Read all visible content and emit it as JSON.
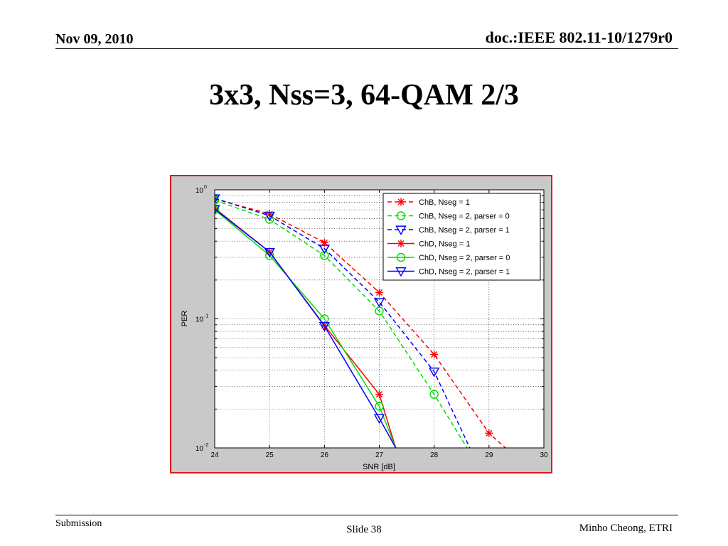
{
  "header": {
    "date": "Nov 09, 2010",
    "doc": "doc.:IEEE 802.11-10/1279r0"
  },
  "slide": {
    "title": "3x3, Nss=3, 64-QAM 2/3"
  },
  "footer": {
    "left": "Submission",
    "center": "Slide 38",
    "right": "Minho Cheong, ETRI"
  },
  "colors": {
    "red": "#ff0000",
    "green": "#00dd00",
    "blue": "#0000ff",
    "frame": "#e0191f"
  },
  "chart_data": {
    "type": "line",
    "xlabel": "SNR [dB]",
    "ylabel": "PER",
    "xlim": [
      24,
      30
    ],
    "ylim": [
      0.01,
      1
    ],
    "yscale": "log",
    "grid": true,
    "legend_position": "top-right",
    "x_ticks": [
      "24",
      "25",
      "26",
      "27",
      "28",
      "29",
      "30"
    ],
    "y_ticks": [
      {
        "base": "10",
        "exp": "0",
        "value": 1
      },
      {
        "base": "10",
        "exp": "-1",
        "value": 0.1
      },
      {
        "base": "10",
        "exp": "-2",
        "value": 0.01
      }
    ],
    "series": [
      {
        "name": "ChB, Nseg = 1",
        "color": "#ff0000",
        "dash": true,
        "marker": "star",
        "x": [
          24,
          25,
          26,
          27,
          28,
          29,
          29.3
        ],
        "y": [
          0.85,
          0.65,
          0.39,
          0.16,
          0.053,
          0.013,
          0.01
        ]
      },
      {
        "name": "ChB, Nseg = 2, parser = 0",
        "color": "#00dd00",
        "dash": true,
        "marker": "circle",
        "x": [
          24,
          25,
          26,
          27,
          28,
          28.6
        ],
        "y": [
          0.83,
          0.59,
          0.31,
          0.115,
          0.026,
          0.01
        ]
      },
      {
        "name": "ChB, Nseg = 2, parser = 1",
        "color": "#0000ff",
        "dash": true,
        "marker": "triangle",
        "x": [
          24,
          25,
          26,
          27,
          28,
          28.65
        ],
        "y": [
          0.86,
          0.63,
          0.35,
          0.135,
          0.039,
          0.01
        ]
      },
      {
        "name": "ChD, Nseg = 1",
        "color": "#ff0000",
        "dash": false,
        "marker": "star",
        "x": [
          24,
          25,
          26,
          27,
          27.3
        ],
        "y": [
          0.72,
          0.33,
          0.089,
          0.026,
          0.01
        ]
      },
      {
        "name": "ChD, Nseg = 2, parser = 0",
        "color": "#00dd00",
        "dash": false,
        "marker": "circle",
        "x": [
          24,
          25,
          26,
          27,
          27.3
        ],
        "y": [
          0.7,
          0.31,
          0.1,
          0.021,
          0.01
        ]
      },
      {
        "name": "ChD, Nseg = 2, parser = 1",
        "color": "#0000ff",
        "dash": false,
        "marker": "triangle",
        "x": [
          24,
          25,
          26,
          27,
          27.3
        ],
        "y": [
          0.71,
          0.33,
          0.088,
          0.017,
          0.01
        ]
      }
    ]
  }
}
